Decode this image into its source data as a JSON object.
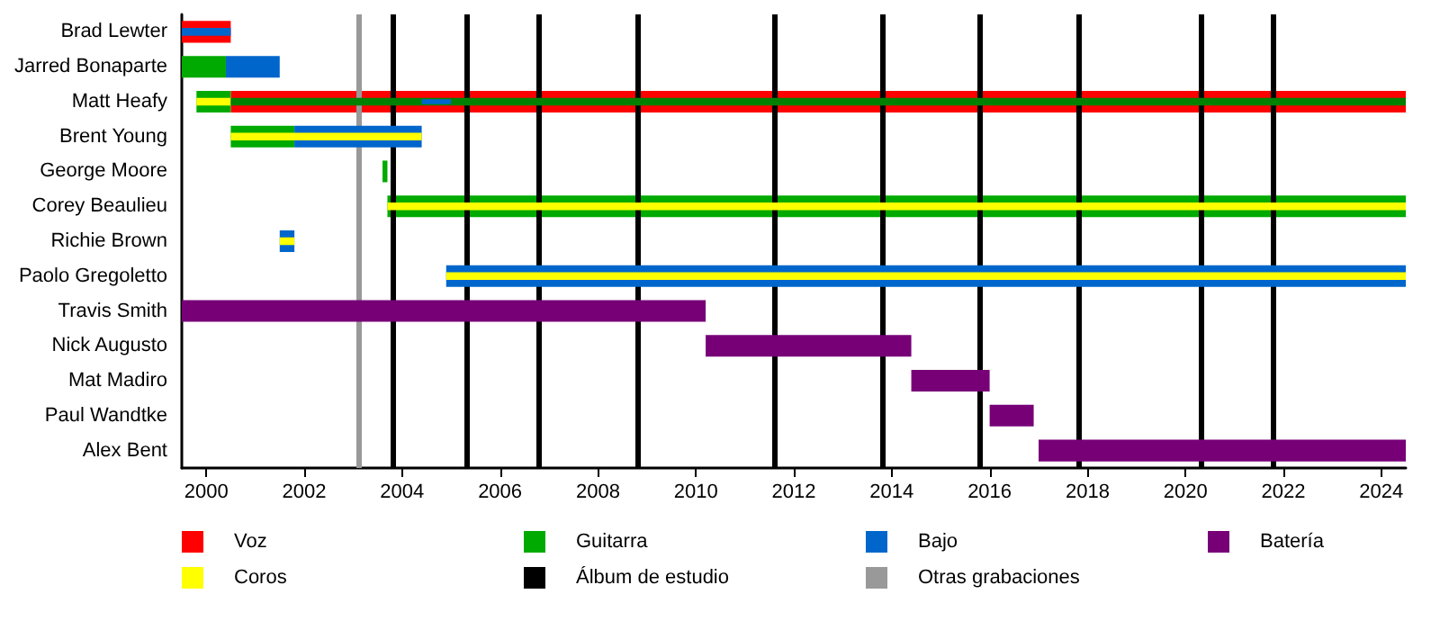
{
  "chart_data": {
    "type": "bar",
    "orientation": "horizontal",
    "categories": [
      "Brad Lewter",
      "Jarred Bonaparte",
      "Matt Heafy",
      "Brent Young",
      "George Moore",
      "Corey Beaulieu",
      "Richie Brown",
      "Paolo Gregoletto",
      "Travis Smith",
      "Nick Augusto",
      "Mat Madiro",
      "Paul Wandtke",
      "Alex Bent"
    ],
    "series": [
      {
        "name": "Voz",
        "color": "#ff0000",
        "base": [
          1999.5,
          null,
          2000.5,
          null,
          null,
          null,
          null,
          null,
          null,
          null,
          null,
          null,
          null
        ],
        "values": [
          1.0,
          null,
          24.0,
          null,
          null,
          null,
          null,
          null,
          null,
          null,
          null,
          null,
          null
        ]
      },
      {
        "name": "Guitarra",
        "color": "#00aa00",
        "base": [
          null,
          1999.5,
          1999.8,
          2000.5,
          2003.6,
          2003.7,
          null,
          null,
          null,
          null,
          null,
          null,
          null
        ],
        "values": [
          null,
          0.9,
          0.7,
          1.3,
          0.1,
          20.8,
          null,
          null,
          null,
          null,
          null,
          null,
          null
        ]
      },
      {
        "name": "Bajo",
        "color": "#0066cc",
        "base": [
          null,
          2000.4,
          null,
          2001.8,
          null,
          null,
          2001.5,
          2004.9,
          null,
          null,
          null,
          null,
          null
        ],
        "values": [
          null,
          1.1,
          null,
          2.6,
          null,
          null,
          0.3,
          19.6,
          null,
          null,
          null,
          null,
          null
        ]
      },
      {
        "name": "Batería",
        "color": "#770077",
        "base": [
          null,
          null,
          null,
          null,
          null,
          null,
          null,
          null,
          1999.5,
          2010.2,
          2014.4,
          2016.0,
          2017.0
        ],
        "values": [
          null,
          null,
          null,
          null,
          null,
          null,
          null,
          null,
          10.7,
          4.2,
          1.6,
          0.9,
          7.5
        ]
      },
      {
        "color": "#0066cc",
        "base": [
          1999.5,
          null,
          null,
          null,
          null,
          null,
          null,
          null,
          null,
          null,
          null,
          null,
          null
        ],
        "values": [
          1.0,
          null,
          null,
          null,
          null,
          null,
          null,
          null,
          null,
          null,
          null,
          null,
          null
        ]
      },
      {
        "name": "Coros",
        "color": "#ffff00",
        "base": [
          null,
          null,
          1999.8,
          2000.5,
          null,
          2003.7,
          2001.5,
          2004.9,
          null,
          null,
          null,
          null,
          null
        ],
        "values": [
          null,
          null,
          0.7,
          3.9,
          null,
          20.8,
          0.3,
          19.6,
          null,
          null,
          null,
          null,
          null
        ]
      },
      {
        "color": "#008000",
        "base": [
          null,
          null,
          2000.5,
          null,
          null,
          null,
          null,
          null,
          null,
          null,
          null,
          null,
          null
        ],
        "values": [
          null,
          null,
          24.0,
          null,
          null,
          null,
          null,
          null,
          null,
          null,
          null,
          null,
          null
        ]
      },
      {
        "color": "#0066cc",
        "base": [
          null,
          null,
          2004.4,
          null,
          null,
          null,
          null,
          null,
          null,
          null,
          null,
          null,
          null
        ],
        "values": [
          null,
          null,
          0.6,
          null,
          null,
          null,
          null,
          null,
          null,
          null,
          null,
          null,
          null
        ]
      }
    ],
    "xlim": [
      1999.5,
      2024.5
    ],
    "xticks": [
      2000,
      2002,
      2004,
      2006,
      2008,
      2010,
      2012,
      2014,
      2016,
      2018,
      2020,
      2022,
      2024
    ],
    "ref_lines": [
      {
        "axis": "x",
        "value": 2003.8,
        "label": "Álbum de estudio",
        "color": "#000000"
      },
      {
        "axis": "x",
        "value": 2005.3,
        "color": "#000000"
      },
      {
        "axis": "x",
        "value": 2006.8,
        "color": "#000000"
      },
      {
        "axis": "x",
        "value": 2008.8,
        "color": "#000000"
      },
      {
        "axis": "x",
        "value": 2011.6,
        "color": "#000000"
      },
      {
        "axis": "x",
        "value": 2013.8,
        "color": "#000000"
      },
      {
        "axis": "x",
        "value": 2015.8,
        "color": "#000000"
      },
      {
        "axis": "x",
        "value": 2017.8,
        "color": "#000000"
      },
      {
        "axis": "x",
        "value": 2020.3,
        "color": "#000000"
      },
      {
        "axis": "x",
        "value": 2021.8,
        "color": "#000000"
      },
      {
        "axis": "x",
        "value": 2003.1,
        "label": "Otras grabaciones",
        "color": "#999999"
      }
    ],
    "grid": false,
    "legend": "bottom"
  }
}
